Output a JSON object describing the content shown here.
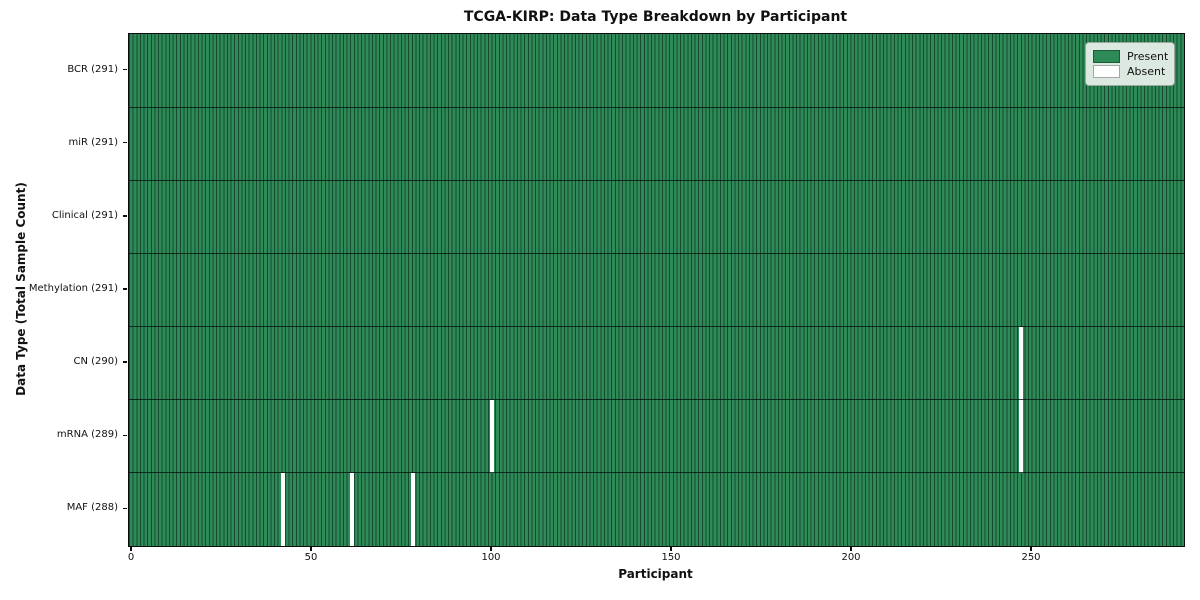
{
  "chart_data": {
    "type": "heatmap",
    "title": "TCGA-KIRP: Data Type Breakdown by Participant",
    "xlabel": "Participant",
    "ylabel": "Data Type (Total Sample Count)",
    "n_participants": 291,
    "x_ticks": [
      0,
      50,
      100,
      150,
      200,
      250
    ],
    "x_tick_labels": [
      "0",
      "50",
      "100",
      "150",
      "200",
      "250"
    ],
    "xlim": [
      0,
      291
    ],
    "grid": "row-and-column-separators",
    "legend_position": "upper right",
    "legend": [
      {
        "label": "Present",
        "color": "#2e8b57"
      },
      {
        "label": "Absent",
        "color": "#ffffff"
      }
    ],
    "rows": [
      {
        "label": "BCR (291)",
        "data_type": "BCR",
        "present_count": 291,
        "absent_participants": []
      },
      {
        "label": "miR (291)",
        "data_type": "miR",
        "present_count": 291,
        "absent_participants": []
      },
      {
        "label": "Clinical (291)",
        "data_type": "Clinical",
        "present_count": 291,
        "absent_participants": []
      },
      {
        "label": "Methylation (291)",
        "data_type": "Methylation",
        "present_count": 291,
        "absent_participants": []
      },
      {
        "label": "CN (290)",
        "data_type": "CN",
        "present_count": 290,
        "absent_participants": [
          247
        ]
      },
      {
        "label": "mRNA (289)",
        "data_type": "mRNA",
        "present_count": 289,
        "absent_participants": [
          100,
          247
        ]
      },
      {
        "label": "MAF (288)",
        "data_type": "MAF",
        "present_count": 288,
        "absent_participants": [
          42,
          61,
          78
        ]
      }
    ],
    "colors": {
      "present": "#2e8b57",
      "absent": "#ffffff",
      "column_edge": "rgba(8,34,22,0.62)",
      "row_separator": "rgba(5,20,12,0.8)",
      "spine": "#0d0d0d",
      "legend_background": "#dbe9e0"
    }
  }
}
